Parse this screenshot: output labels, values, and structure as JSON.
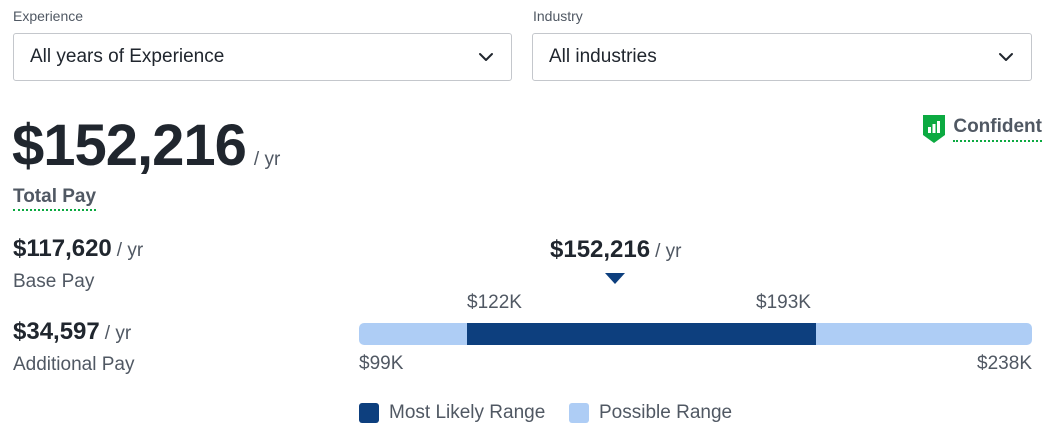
{
  "filters": {
    "experience": {
      "label": "Experience",
      "value": "All years of Experience"
    },
    "industry": {
      "label": "Industry",
      "value": "All industries"
    }
  },
  "total_pay": {
    "amount": "$152,216",
    "per": "/ yr",
    "label": "Total Pay"
  },
  "confidence": {
    "text": "Confident"
  },
  "base_pay": {
    "amount": "$117,620",
    "per": "/ yr",
    "label": "Base Pay"
  },
  "additional_pay": {
    "amount": "$34,597",
    "per": "/ yr",
    "label": "Additional Pay"
  },
  "range": {
    "median_amount": "$152,216",
    "median_per": "/ yr",
    "likely_low": "$122K",
    "likely_high": "$193K",
    "possible_low": "$99K",
    "possible_high": "$238K"
  },
  "legend": {
    "likely": "Most Likely Range",
    "possible": "Possible Range"
  },
  "colors": {
    "likely": "#0d3f7e",
    "possible": "#aecdf5",
    "brand_green": "#0caa41"
  }
}
